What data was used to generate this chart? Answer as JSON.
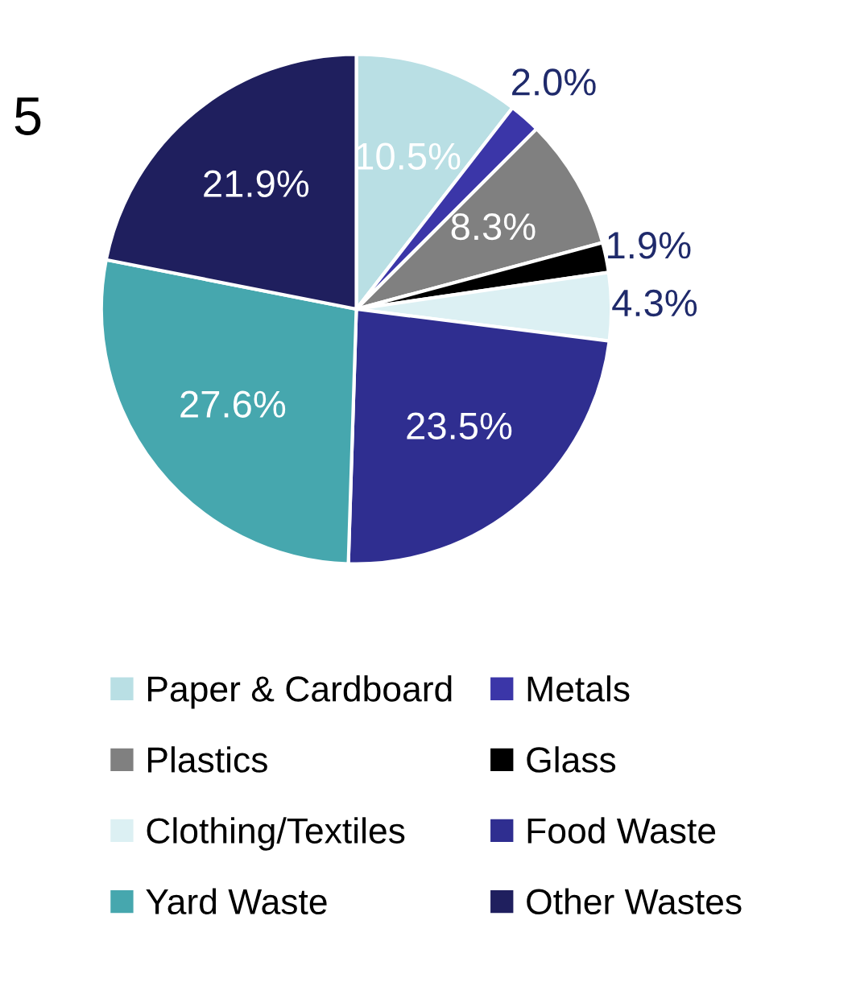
{
  "chart_data": {
    "type": "pie",
    "categories": [
      "Paper & Cardboard",
      "Metals",
      "Plastics",
      "Glass",
      "Clothing/Textiles",
      "Food Waste",
      "Yard Waste",
      "Other Wastes"
    ],
    "values": [
      10.5,
      2.0,
      8.3,
      1.9,
      4.3,
      23.5,
      27.6,
      21.9
    ],
    "value_labels": [
      "10.5%",
      "2.0%",
      "8.3%",
      "1.9%",
      "4.3%",
      "23.5%",
      "27.6%",
      "21.9%"
    ],
    "colors": [
      "#b9dfe4",
      "#3b36a8",
      "#808080",
      "#000000",
      "#dcf0f3",
      "#2f2e90",
      "#46a7ae",
      "#1f1f5e"
    ],
    "legend": "bottom",
    "annotations": [
      "5"
    ]
  }
}
